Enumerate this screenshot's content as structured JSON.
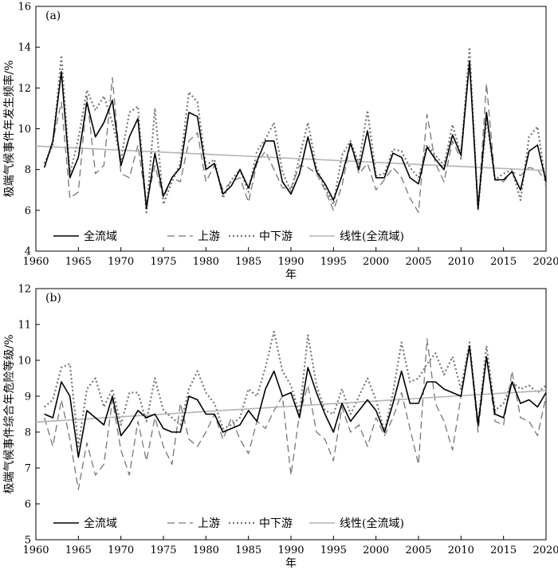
{
  "chart_data": [
    {
      "type": "line",
      "panel_label": "(a)",
      "xlabel": "年",
      "ylabel": "极端气候事件年发生频率/%",
      "xlim": [
        1960,
        2020
      ],
      "ylim": [
        4,
        16
      ],
      "xticks": [
        1960,
        1965,
        1970,
        1975,
        1980,
        1985,
        1990,
        1995,
        2000,
        2005,
        2010,
        2015,
        2020
      ],
      "yticks": [
        4,
        6,
        8,
        10,
        12,
        14,
        16
      ],
      "x": [
        1961,
        1962,
        1963,
        1964,
        1965,
        1966,
        1967,
        1968,
        1969,
        1970,
        1971,
        1972,
        1973,
        1974,
        1975,
        1976,
        1977,
        1978,
        1979,
        1980,
        1981,
        1982,
        1983,
        1984,
        1985,
        1986,
        1987,
        1988,
        1989,
        1990,
        1991,
        1992,
        1993,
        1994,
        1995,
        1996,
        1997,
        1998,
        1999,
        2000,
        2001,
        2002,
        2003,
        2004,
        2005,
        2006,
        2007,
        2008,
        2009,
        2010,
        2011,
        2012,
        2013,
        2014,
        2015,
        2016,
        2017,
        2018,
        2019,
        2020
      ],
      "series": [
        {
          "name": "全流域",
          "style": "solid",
          "color": "#000000",
          "values": [
            8.1,
            9.4,
            12.8,
            7.6,
            8.6,
            11.3,
            9.6,
            10.3,
            11.4,
            8.2,
            9.6,
            10.5,
            6.1,
            8.8,
            6.7,
            7.6,
            8.1,
            10.8,
            10.6,
            8.0,
            8.3,
            6.8,
            7.2,
            8.0,
            7.1,
            8.4,
            9.4,
            9.4,
            7.4,
            6.8,
            7.8,
            9.6,
            7.9,
            7.3,
            6.5,
            7.7,
            9.3,
            8.0,
            9.9,
            7.6,
            7.6,
            8.8,
            8.6,
            7.6,
            7.3,
            9.1,
            8.5,
            8.0,
            9.7,
            8.7,
            13.3,
            6.1,
            10.8,
            7.5,
            7.5,
            7.9,
            7.0,
            8.9,
            9.2,
            7.4
          ]
        },
        {
          "name": "上游",
          "style": "dashed",
          "color": "#777777",
          "values": [
            8.1,
            9.4,
            11.3,
            6.6,
            6.9,
            11.6,
            7.8,
            8.2,
            12.5,
            7.8,
            7.6,
            9.2,
            6.3,
            8.2,
            6.6,
            7.6,
            7.4,
            9.4,
            9.8,
            7.4,
            8.2,
            7.0,
            7.4,
            7.6,
            6.4,
            8.3,
            8.9,
            8.0,
            7.1,
            7.1,
            8.2,
            8.1,
            7.8,
            7.0,
            6.0,
            7.2,
            9.3,
            7.8,
            8.3,
            7.0,
            7.5,
            8.1,
            7.6,
            6.6,
            5.9,
            10.7,
            8.3,
            7.4,
            9.4,
            8.5,
            13.3,
            6.0,
            12.2,
            7.5,
            7.4,
            7.9,
            7.7,
            8.1,
            8.0,
            7.4
          ]
        },
        {
          "name": "中下游",
          "style": "dotted",
          "color": "#777777",
          "values": [
            8.3,
            9.2,
            13.6,
            7.8,
            9.5,
            11.9,
            10.9,
            11.6,
            10.3,
            8.5,
            10.8,
            11.1,
            5.9,
            11.0,
            6.3,
            7.4,
            8.3,
            11.8,
            11.3,
            8.2,
            8.5,
            6.6,
            7.5,
            8.0,
            6.9,
            8.9,
            9.5,
            10.3,
            7.9,
            6.9,
            8.6,
            10.3,
            8.1,
            7.1,
            6.3,
            8.7,
            9.4,
            8.3,
            10.9,
            7.7,
            7.8,
            9.0,
            8.9,
            8.1,
            7.6,
            9.2,
            8.7,
            8.2,
            10.2,
            8.7,
            14.0,
            6.0,
            10.5,
            7.5,
            7.8,
            8.0,
            6.5,
            9.6,
            10.1,
            7.2
          ]
        },
        {
          "name": "线性(全流域)",
          "style": "trend",
          "color": "#b4b4b4",
          "values": [
            9.15,
            7.95
          ],
          "x": [
            1960,
            2020
          ]
        }
      ],
      "legend_position": "bottom-left"
    },
    {
      "type": "line",
      "panel_label": "(b)",
      "xlabel": "年",
      "ylabel": "极端气候事件综合年危险等级/%",
      "xlim": [
        1960,
        2020
      ],
      "ylim": [
        5,
        12
      ],
      "xticks": [
        1960,
        1965,
        1970,
        1975,
        1980,
        1985,
        1990,
        1995,
        2000,
        2005,
        2010,
        2015,
        2020
      ],
      "yticks": [
        5,
        6,
        7,
        8,
        9,
        10,
        11,
        12
      ],
      "x": [
        1961,
        1962,
        1963,
        1964,
        1965,
        1966,
        1967,
        1968,
        1969,
        1970,
        1971,
        1972,
        1973,
        1974,
        1975,
        1976,
        1977,
        1978,
        1979,
        1980,
        1981,
        1982,
        1983,
        1984,
        1985,
        1986,
        1987,
        1988,
        1989,
        1990,
        1991,
        1992,
        1993,
        1994,
        1995,
        1996,
        1997,
        1998,
        1999,
        2000,
        2001,
        2002,
        2003,
        2004,
        2005,
        2006,
        2007,
        2008,
        2009,
        2010,
        2011,
        2012,
        2013,
        2014,
        2015,
        2016,
        2017,
        2018,
        2019,
        2020
      ],
      "series": [
        {
          "name": "全流域",
          "style": "solid",
          "color": "#000000",
          "values": [
            8.5,
            8.4,
            9.4,
            9.0,
            7.3,
            8.6,
            8.4,
            8.2,
            9.0,
            7.9,
            8.2,
            8.6,
            8.4,
            8.5,
            8.1,
            8.0,
            8.0,
            9.0,
            8.9,
            8.5,
            8.5,
            8.0,
            8.1,
            8.2,
            8.6,
            8.3,
            9.2,
            9.7,
            9.0,
            9.1,
            8.4,
            9.8,
            9.1,
            8.5,
            8.0,
            8.8,
            8.3,
            8.6,
            8.9,
            8.6,
            8.0,
            8.8,
            9.7,
            8.8,
            8.8,
            9.4,
            9.4,
            9.2,
            9.1,
            9.0,
            10.4,
            8.2,
            10.1,
            8.5,
            8.4,
            9.4,
            8.8,
            8.9,
            8.7,
            9.1
          ]
        },
        {
          "name": "上游",
          "style": "dashed",
          "color": "#777777",
          "values": [
            8.4,
            7.6,
            8.9,
            7.8,
            6.4,
            7.7,
            6.8,
            7.1,
            8.9,
            7.5,
            6.8,
            8.3,
            7.2,
            8.4,
            7.6,
            7.1,
            8.8,
            7.8,
            7.6,
            8.0,
            8.5,
            7.8,
            8.4,
            7.8,
            7.4,
            8.3,
            8.1,
            8.6,
            9.0,
            6.8,
            8.5,
            9.3,
            8.0,
            7.8,
            7.2,
            8.7,
            8.0,
            8.2,
            7.6,
            8.4,
            7.9,
            8.4,
            9.1,
            8.1,
            7.1,
            10.6,
            8.8,
            8.3,
            7.5,
            9.0,
            10.4,
            8.0,
            10.1,
            8.3,
            8.2,
            9.7,
            8.4,
            8.3,
            7.9,
            9.0
          ]
        },
        {
          "name": "中下游",
          "style": "dotted",
          "color": "#777777",
          "values": [
            8.7,
            8.9,
            9.8,
            9.9,
            7.6,
            9.2,
            9.5,
            8.7,
            9.2,
            8.2,
            9.1,
            9.1,
            8.3,
            9.5,
            8.6,
            8.4,
            8.2,
            9.2,
            9.7,
            9.1,
            8.8,
            8.1,
            8.2,
            8.4,
            9.2,
            9.0,
            9.8,
            10.8,
            9.7,
            9.3,
            8.5,
            10.7,
            9.3,
            8.6,
            8.5,
            9.2,
            8.5,
            9.0,
            9.5,
            8.9,
            8.0,
            9.1,
            10.5,
            9.4,
            9.5,
            9.9,
            10.2,
            9.6,
            10.1,
            9.2,
            10.5,
            8.2,
            10.4,
            8.6,
            8.8,
            9.4,
            9.2,
            9.3,
            9.1,
            9.3
          ]
        },
        {
          "name": "线性(全流域)",
          "style": "trend",
          "color": "#b4b4b4",
          "values": [
            8.28,
            9.16
          ],
          "x": [
            1960,
            2020
          ]
        }
      ],
      "legend_position": "bottom-left"
    }
  ]
}
